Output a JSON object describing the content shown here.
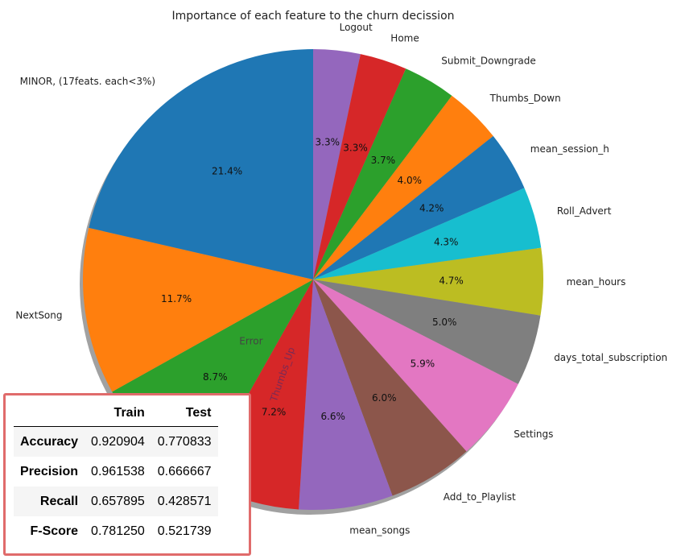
{
  "chart_data": {
    "type": "pie",
    "title": "Importance of each feature to the churn decission",
    "slices": [
      {
        "label": "Logout",
        "value": 3.3,
        "pct": "3.3%",
        "color": "#9467bd"
      },
      {
        "label": "Home",
        "value": 3.3,
        "pct": "3.3%",
        "color": "#d62728"
      },
      {
        "label": "Submit_Downgrade",
        "value": 3.7,
        "pct": "3.7%",
        "color": "#2ca02c"
      },
      {
        "label": "Thumbs_Down",
        "value": 4.0,
        "pct": "4.0%",
        "color": "#ff7f0e"
      },
      {
        "label": "mean_session_h",
        "value": 4.2,
        "pct": "4.2%",
        "color": "#1f77b4"
      },
      {
        "label": "Roll_Advert",
        "value": 4.3,
        "pct": "4.3%",
        "color": "#17becf"
      },
      {
        "label": "mean_hours",
        "value": 4.7,
        "pct": "4.7%",
        "color": "#bcbd22"
      },
      {
        "label": "days_total_subscription",
        "value": 5.0,
        "pct": "5.0%",
        "color": "#7f7f7f"
      },
      {
        "label": "Settings",
        "value": 5.9,
        "pct": "5.9%",
        "color": "#e377c2"
      },
      {
        "label": "Add_to_Playlist",
        "value": 6.0,
        "pct": "6.0%",
        "color": "#8c564b"
      },
      {
        "label": "mean_songs",
        "value": 6.6,
        "pct": "6.6%",
        "color": "#9467bd"
      },
      {
        "label": "Thumbs_Up",
        "value": 7.2,
        "pct": "7.2%",
        "color": "#d62728"
      },
      {
        "label": "Error",
        "value": 8.7,
        "pct": "8.7%",
        "color": "#2ca02c"
      },
      {
        "label": "NextSong",
        "value": 11.7,
        "pct": "11.7%",
        "color": "#ff7f0e"
      },
      {
        "label": "MINOR, (17feats. each<3%)",
        "value": 21.4,
        "pct": "21.4%",
        "color": "#1f77b4"
      }
    ],
    "start_angle": "90 degrees (12 o'clock), clockwise",
    "shadow": true
  },
  "metrics_table": {
    "columns": [
      "",
      "Train",
      "Test"
    ],
    "rows": [
      {
        "metric": "Accuracy",
        "train": "0.920904",
        "test": "0.770833"
      },
      {
        "metric": "Precision",
        "train": "0.961538",
        "test": "0.666667"
      },
      {
        "metric": "Recall",
        "train": "0.657895",
        "test": "0.428571"
      },
      {
        "metric": "F-Score",
        "train": "0.781250",
        "test": "0.521739"
      }
    ],
    "border_color": "#e06b6b"
  }
}
